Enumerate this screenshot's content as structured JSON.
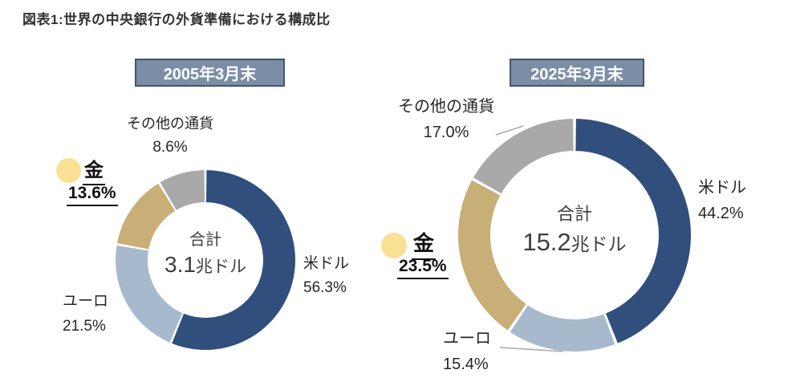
{
  "title": "図表1:世界の中央銀行の外貨準備における構成比",
  "theme": {
    "title_color": "#333333",
    "text_color": "#262626",
    "center_text_color": "#3f3f3f",
    "badge_bg": "#7b8ea6",
    "badge_border": "#44546a",
    "badge_text_color": "#ffffff",
    "leader_line_color": "#a8a8a8",
    "gold_marker_color": "#fae093",
    "usd_color": "#304f7d",
    "euro_color": "#a7bacd",
    "gold_color": "#c8ae77",
    "other_color": "#a9a9a9"
  },
  "chart_data": [
    {
      "type": "pie",
      "style": "donut",
      "title": "2005年3月末",
      "categories": [
        "米ドル",
        "ユーロ",
        "金",
        "その他の通貨"
      ],
      "values": [
        56.3,
        21.5,
        13.6,
        8.6
      ],
      "unit": "%",
      "colors": [
        "#304f7d",
        "#a7bacd",
        "#c8ae77",
        "#a9a9a9"
      ],
      "start_angle_deg": 0,
      "direction": "clockwise",
      "center": {
        "label": "合計",
        "value": "3.1",
        "unit": "兆ドル"
      },
      "labels": {
        "usd": {
          "text": "米ドル",
          "pct": "56.3%"
        },
        "euro": {
          "text": "ユーロ",
          "pct": "21.5%"
        },
        "gold": {
          "text": "金",
          "pct": "13.6%"
        },
        "other": {
          "text": "その他の通貨",
          "pct": "8.6%"
        }
      }
    },
    {
      "type": "pie",
      "style": "donut",
      "title": "2025年3月末",
      "categories": [
        "米ドル",
        "ユーロ",
        "金",
        "その他の通貨"
      ],
      "values": [
        44.2,
        15.4,
        23.5,
        17.0
      ],
      "unit": "%",
      "colors": [
        "#304f7d",
        "#a7bacd",
        "#c8ae77",
        "#a9a9a9"
      ],
      "start_angle_deg": 0,
      "direction": "clockwise",
      "center": {
        "label": "合計",
        "value": "15.2",
        "unit": "兆ドル"
      },
      "labels": {
        "usd": {
          "text": "米ドル",
          "pct": "44.2%"
        },
        "euro": {
          "text": "ユーロ",
          "pct": "15.4%"
        },
        "gold": {
          "text": "金",
          "pct": "23.5%"
        },
        "other": {
          "text": "その他の通貨",
          "pct": "17.0%"
        }
      }
    }
  ]
}
